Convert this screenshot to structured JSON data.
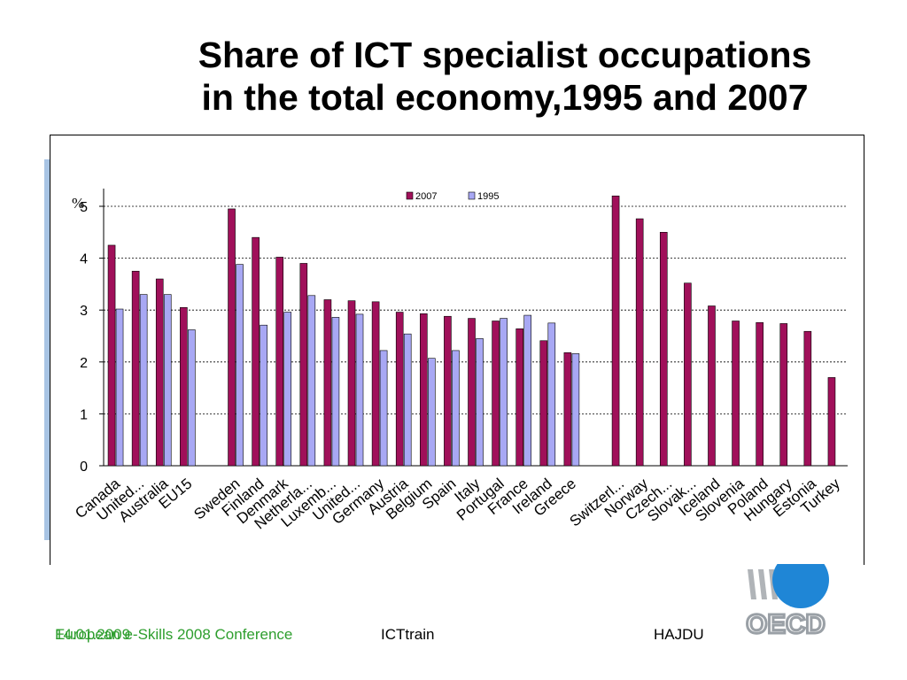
{
  "slide": {
    "title_line1": "Share of ICT specialist occupations",
    "title_line2": "in the total economy,1995 and 2007"
  },
  "footer": {
    "date": "14.01.2009",
    "conference": "European e-Skills 2008 Conference",
    "project": "ICTtrain",
    "author": "HAJDU"
  },
  "logo": {
    "text": "OECD",
    "icon": "oecd-logo"
  },
  "colors": {
    "series_2007": "#a0105a",
    "series_1995": "#a8a8f4",
    "accent": "#a8c4e4"
  },
  "chart_data": {
    "type": "bar",
    "ylabel": "%",
    "ylim": [
      0,
      5
    ],
    "yticks": [
      0,
      1,
      2,
      3,
      4,
      5
    ],
    "grid": true,
    "legend_position": "top-center",
    "categories": [
      "Canada",
      "United...",
      "Australia",
      "EU15",
      "",
      "Sweden",
      "Finland",
      "Denmark",
      "Netherla...",
      "Luxemb...",
      "United...",
      "Germany",
      "Austria",
      "Belgium",
      "Spain",
      "Italy",
      "Portugal",
      "France",
      "Ireland",
      "Greece",
      "",
      "Switzerl...",
      "Norway",
      "Czech...",
      "Slovak...",
      "Iceland",
      "Slovenia",
      "Poland",
      "Hungary",
      "Estonia",
      "Turkey"
    ],
    "series": [
      {
        "name": "2007",
        "values": [
          4.25,
          3.75,
          3.6,
          3.05,
          null,
          4.95,
          4.4,
          4.02,
          3.9,
          3.2,
          3.18,
          3.16,
          2.96,
          2.93,
          2.88,
          2.84,
          2.79,
          2.64,
          2.41,
          2.18,
          null,
          5.2,
          4.76,
          4.5,
          3.52,
          3.08,
          2.79,
          2.76,
          2.74,
          2.59,
          1.7
        ]
      },
      {
        "name": "1995",
        "values": [
          3.02,
          3.3,
          3.3,
          2.62,
          null,
          3.88,
          2.71,
          2.96,
          3.28,
          2.86,
          2.92,
          2.22,
          2.54,
          2.07,
          2.22,
          2.45,
          2.84,
          2.9,
          2.75,
          2.16,
          null,
          null,
          null,
          null,
          null,
          null,
          null,
          null,
          null,
          null,
          null
        ]
      }
    ]
  }
}
